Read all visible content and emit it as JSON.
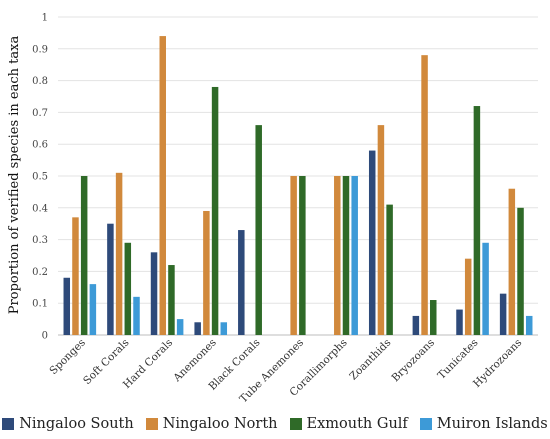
{
  "chart_data": {
    "type": "bar",
    "ylabel": "Proportion of verified species in each taxa",
    "ylim": [
      0,
      1
    ],
    "yticks": [
      "0",
      "0.1",
      "0.2",
      "0.3",
      "0.4",
      "0.5",
      "0.6",
      "0.7",
      "0.8",
      "0.9",
      "1"
    ],
    "grid": true,
    "legend_position": "bottom",
    "categories": [
      "Sponges",
      "Soft Corals",
      "Hard Corals",
      "Anemones",
      "Black Corals",
      "Tube Anemones",
      "Corallimorphs",
      "Zoanthids",
      "Bryozoans",
      "Tunicates",
      "Hydrozoans"
    ],
    "series": [
      {
        "name": "Ningaloo South",
        "color": "#2e4a7a",
        "values": [
          0.18,
          0.35,
          0.26,
          0.04,
          0.33,
          0,
          0,
          0.58,
          0.06,
          0.08,
          0.13
        ]
      },
      {
        "name": "Ningaloo North",
        "color": "#d1893c",
        "values": [
          0.37,
          0.51,
          0.94,
          0.39,
          0,
          0.5,
          0.5,
          0.66,
          0.88,
          0.24,
          0.46
        ]
      },
      {
        "name": "Exmouth Gulf",
        "color": "#2f6a28",
        "values": [
          0.5,
          0.29,
          0.22,
          0.78,
          0.66,
          0.5,
          0.5,
          0.41,
          0.11,
          0.72,
          0.4
        ]
      },
      {
        "name": "Muiron Islands",
        "color": "#3d9ad7",
        "values": [
          0.16,
          0.12,
          0.05,
          0.04,
          0,
          0,
          0.5,
          0,
          0,
          0.29,
          0.06
        ]
      }
    ]
  }
}
